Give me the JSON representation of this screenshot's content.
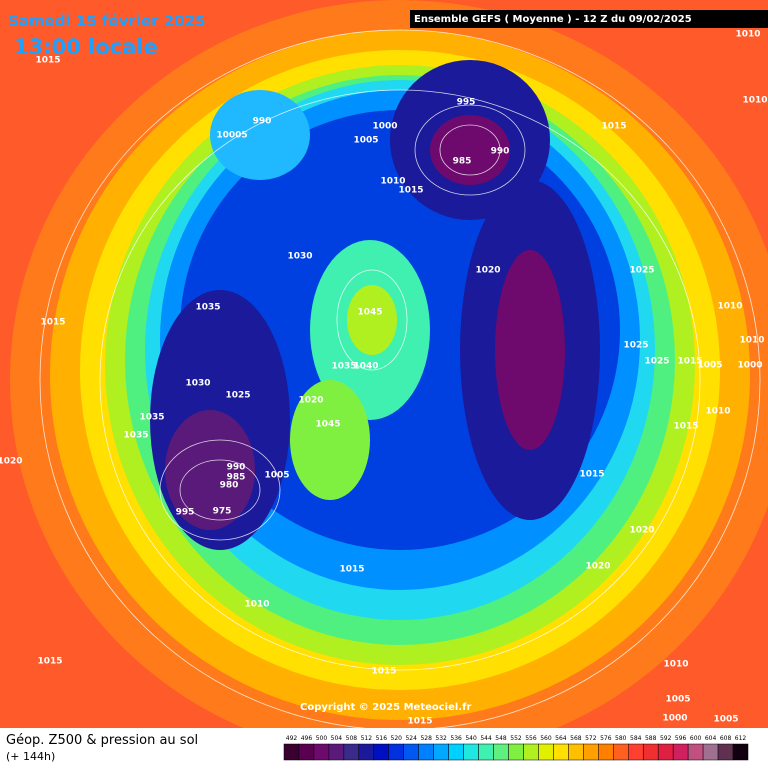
{
  "header": {
    "date": "Samedi 15 février 2025",
    "time": "13:00 locale",
    "model": "Ensemble GEFS  ( Moyenne )  -  12 Z du 09/02/2025"
  },
  "footer": {
    "title": "Géop. Z500 & pression au sol",
    "lead": "(+ 144h)",
    "copyright": "Copyright © 2025 Meteociel.fr"
  },
  "isobar_labels": [
    "1015",
    "990",
    "10005",
    "995",
    "1000",
    "1005",
    "985",
    "990",
    "1015",
    "1010",
    "1015",
    "1030",
    "1020",
    "1025",
    "1045",
    "1035",
    "1015",
    "1010",
    "1010",
    "1025",
    "1025",
    "1015",
    "1005",
    "1030",
    "1025",
    "1035",
    "1040",
    "1020",
    "1045",
    "1035",
    "1035",
    "1010",
    "1015",
    "1020",
    "990",
    "985",
    "980",
    "1005",
    "995",
    "975",
    "1015",
    "1020",
    "1020",
    "1015",
    "1010",
    "1015",
    "1015",
    "1010",
    "1005",
    "1000",
    "1005",
    "1015",
    "1010",
    "1010",
    "1000"
  ],
  "legend": {
    "values": [
      "492",
      "496",
      "500",
      "504",
      "508",
      "512",
      "516",
      "520",
      "524",
      "528",
      "532",
      "536",
      "540",
      "544",
      "548",
      "552",
      "556",
      "560",
      "564",
      "568",
      "572",
      "576",
      "580",
      "584",
      "588",
      "592",
      "596",
      "600",
      "604",
      "608",
      "612"
    ],
    "colors": [
      "#3a0030",
      "#5a0050",
      "#6e0a6e",
      "#5a1a7a",
      "#3a2a8a",
      "#1a1a9a",
      "#0010c0",
      "#0030e0",
      "#0058f0",
      "#0080ff",
      "#00a8ff",
      "#00d0ff",
      "#20e8e0",
      "#40f0b0",
      "#60f080",
      "#80f040",
      "#b0f020",
      "#e0f000",
      "#ffe000",
      "#ffc000",
      "#ffa000",
      "#ff8000",
      "#ff6020",
      "#ff4030",
      "#f03030",
      "#e02040",
      "#d02060",
      "#c05080",
      "#a07090",
      "#603050",
      "#100010"
    ]
  }
}
